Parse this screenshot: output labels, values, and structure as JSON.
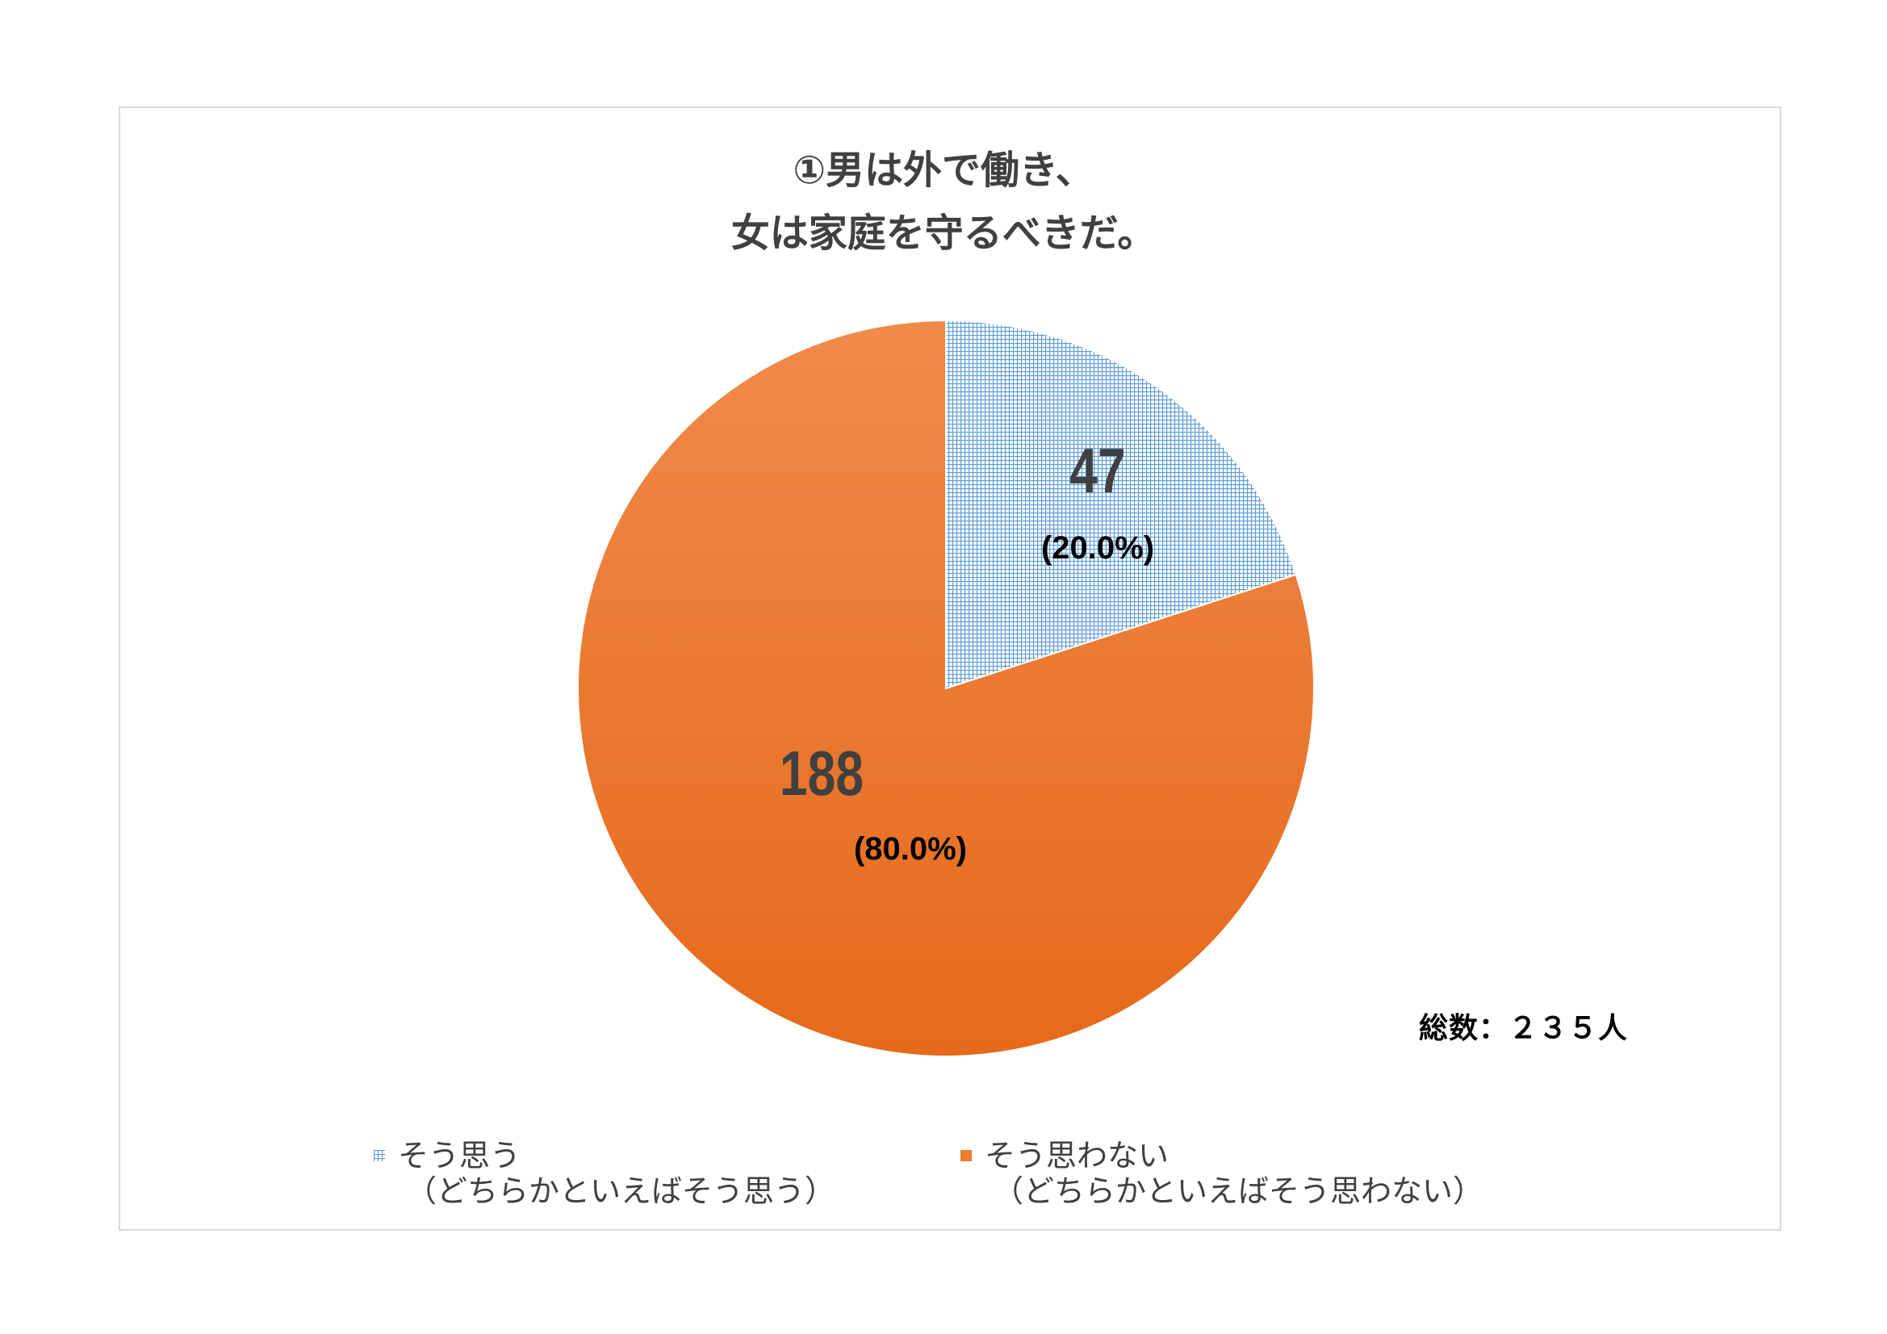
{
  "chart_data": {
    "type": "pie",
    "title_lines": [
      "①男は外で働き、",
      "女は家庭を守るべきだ。"
    ],
    "slices": [
      {
        "legend_line1": "そう思う",
        "legend_line2": "（どちらかといえばそう思う）",
        "value": 47,
        "percent_label": "(20.0%)",
        "pattern": "grid",
        "color": "#5b9bd5"
      },
      {
        "legend_line1": "そう思わない",
        "legend_line2": "（どちらかといえばそう思わない）",
        "value": 188,
        "percent_label": "(80.0%)",
        "pattern": "solid",
        "color": "#ed7d31"
      }
    ],
    "total_label": "総数：２３５人",
    "legend_position": "bottom"
  }
}
